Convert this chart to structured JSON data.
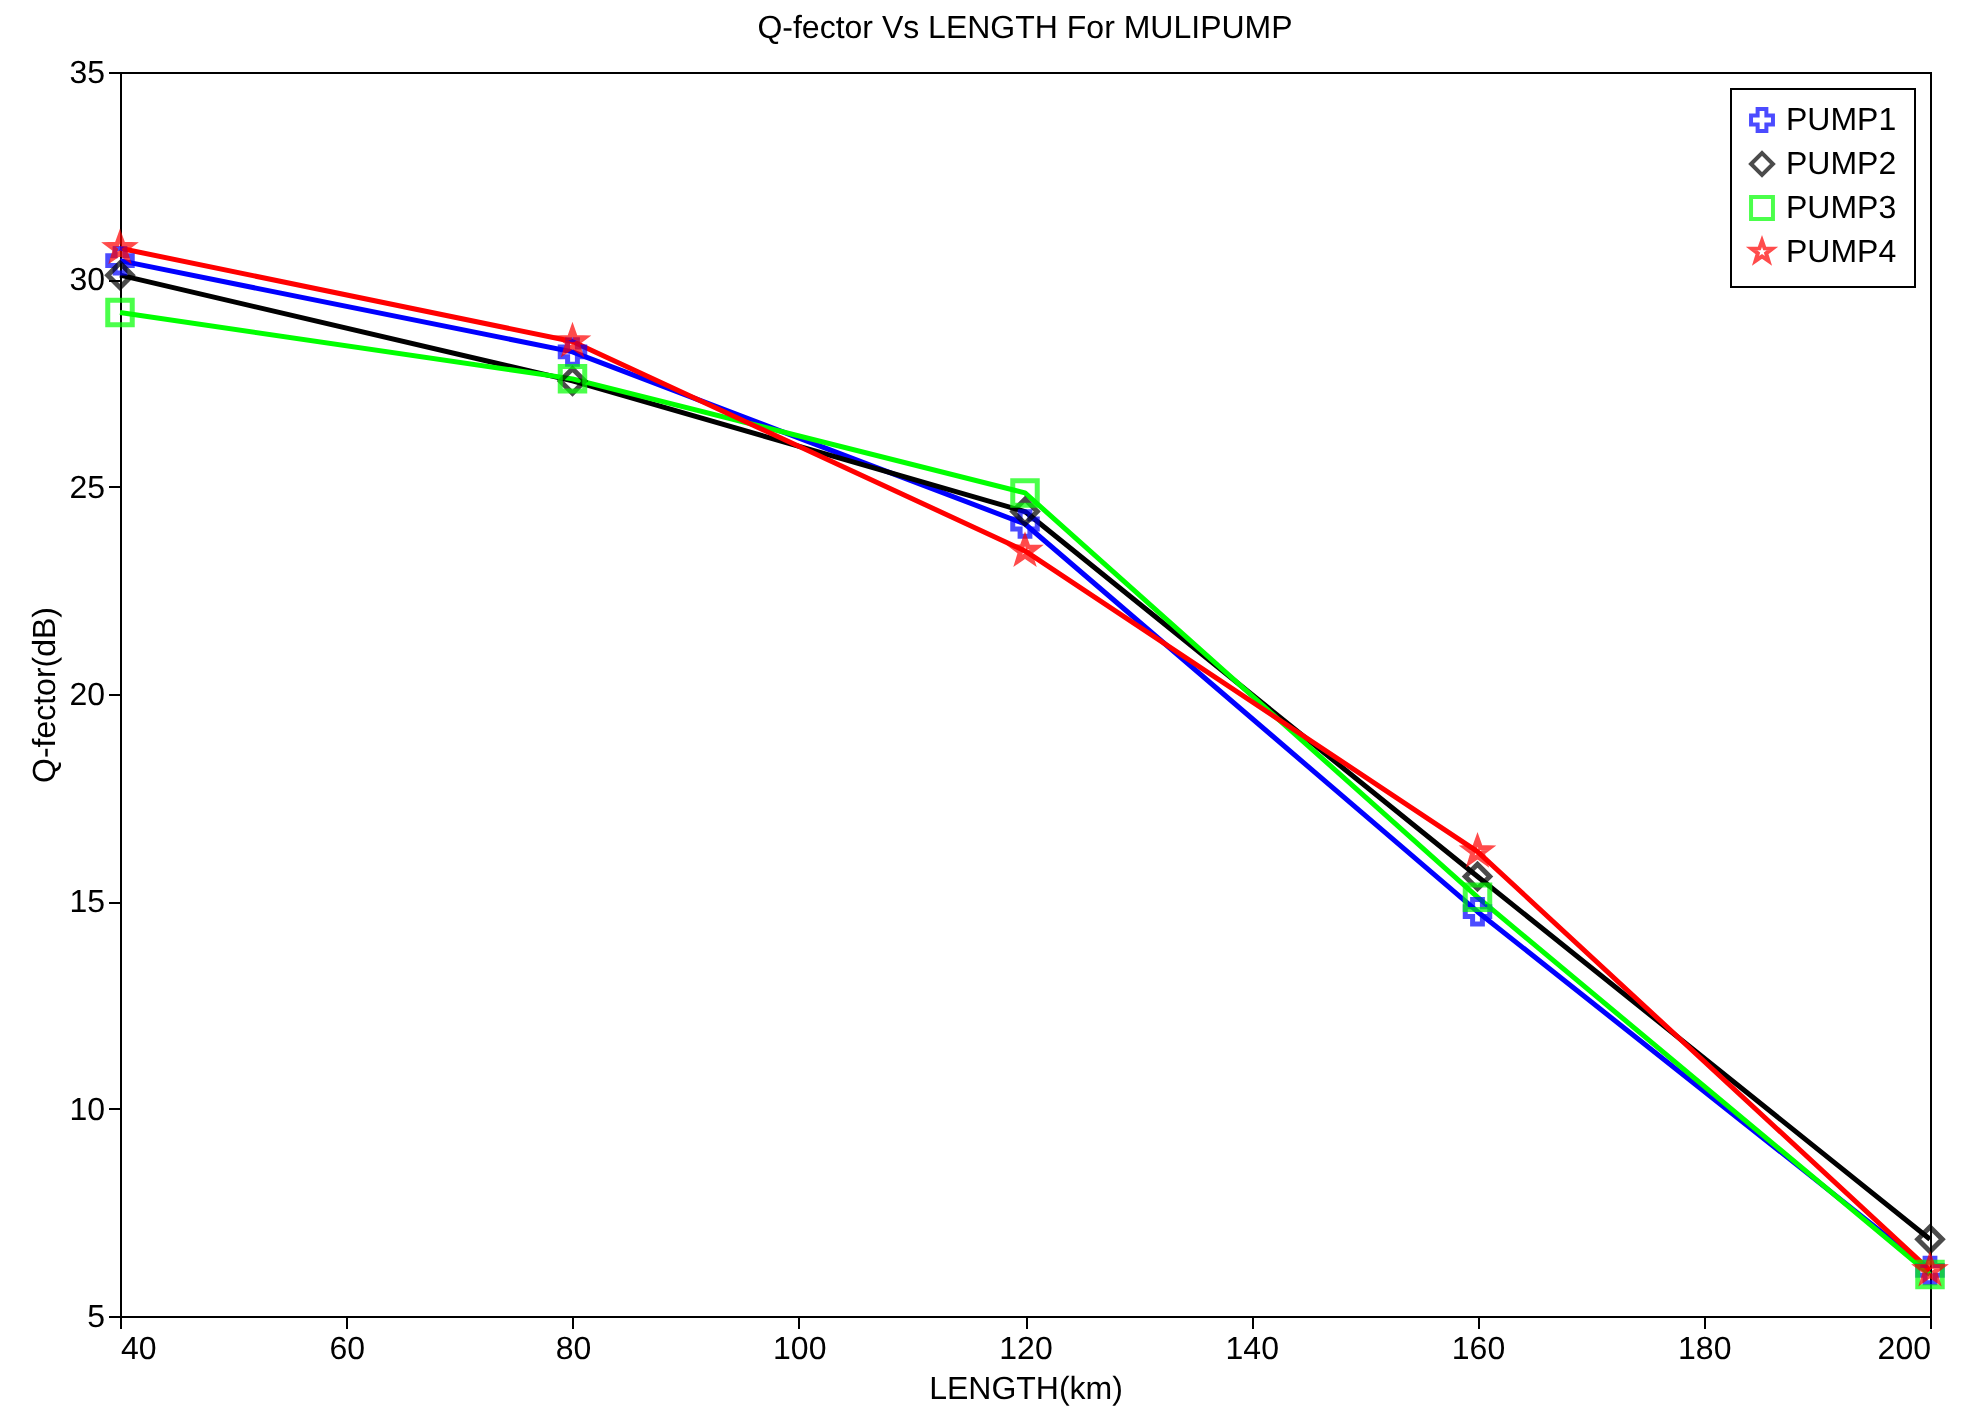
{
  "chart_data": {
    "type": "line",
    "title": "Q-fector Vs LENGTH For MULIPUMP",
    "xlabel": "LENGTH(km)",
    "ylabel": "Q-fector(dB)",
    "x": [
      40,
      80,
      120,
      160,
      200
    ],
    "series": [
      {
        "name": "PUMP1",
        "color": "#0000ff",
        "marker": "cross",
        "values": [
          30.45,
          28.25,
          24.1,
          14.75,
          6.1
        ]
      },
      {
        "name": "PUMP2",
        "color": "#000000",
        "marker": "diamond",
        "values": [
          30.1,
          27.55,
          24.4,
          15.6,
          6.85
        ]
      },
      {
        "name": "PUMP3",
        "color": "#00ff00",
        "marker": "square",
        "values": [
          29.2,
          27.6,
          24.85,
          15.1,
          6.0
        ]
      },
      {
        "name": "PUMP4",
        "color": "#ff0000",
        "marker": "star",
        "values": [
          30.75,
          28.5,
          23.45,
          16.2,
          6.1
        ]
      }
    ],
    "xlim": [
      40,
      200
    ],
    "xticks": [
      40,
      60,
      80,
      100,
      120,
      140,
      160,
      180,
      200
    ],
    "ylim": [
      5,
      35
    ],
    "yticks": [
      5,
      10,
      15,
      20,
      25,
      30,
      35
    ],
    "grid": false,
    "legend": "top right",
    "line_style": "solid"
  }
}
